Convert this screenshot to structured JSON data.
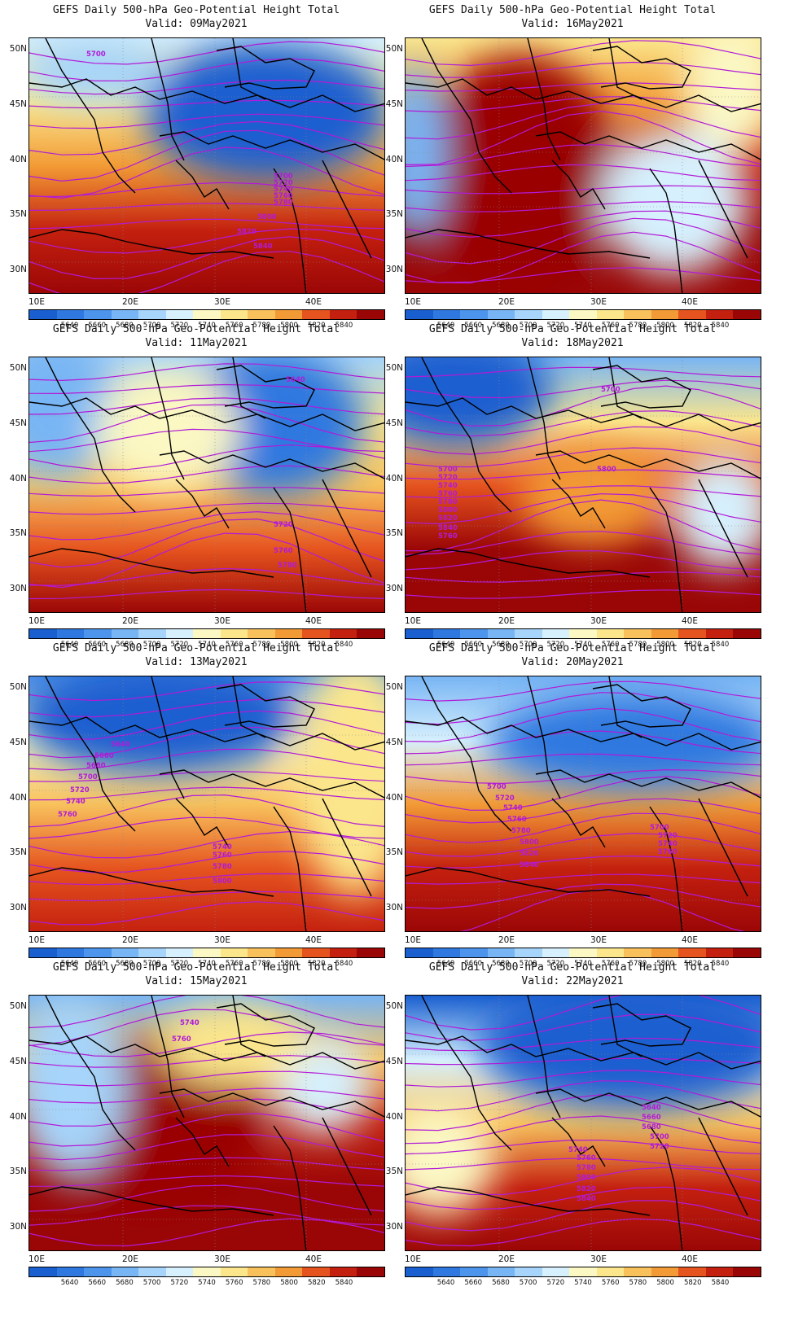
{
  "legend": {
    "colors": [
      "#1a5fd0",
      "#2f78e0",
      "#4d94ec",
      "#78b5f4",
      "#a6d4fa",
      "#d6f0fd",
      "#fbf8c4",
      "#fbe68c",
      "#f8c15c",
      "#f29a35",
      "#e5531f",
      "#c4200f",
      "#9a0606"
    ],
    "labels": [
      "5640",
      "5660",
      "5680",
      "5700",
      "5720",
      "5740",
      "5760",
      "5780",
      "5800",
      "5820",
      "5840"
    ]
  },
  "axes": {
    "lon": [
      "10E",
      "20E",
      "30E",
      "40E"
    ],
    "lat": [
      "50N",
      "45N",
      "40N",
      "35N",
      "30N"
    ]
  },
  "panels": [
    {
      "title": "GEFS Daily 500-hPa Geo-Potential Height Total",
      "valid": "Valid: 09May2021",
      "contour_labels": [
        "5700",
        "5700",
        "5720",
        "5740",
        "5760",
        "5780",
        "5800",
        "5820",
        "5840"
      ]
    },
    {
      "title": "GEFS Daily 500-hPa Geo-Potential Height Total",
      "valid": "Valid: 16May2021",
      "contour_labels": []
    },
    {
      "title": "GEFS Daily 500-hPa Geo-Potential Height Total",
      "valid": "Valid: 11May2021",
      "contour_labels": [
        "5640",
        "5720",
        "5760",
        "5780"
      ]
    },
    {
      "title": "GEFS Daily 500-hPa Geo-Potential Height Total",
      "valid": "Valid: 18May2021",
      "contour_labels": [
        "5700",
        "5700",
        "5720",
        "5740",
        "5760",
        "5780",
        "5800",
        "5820",
        "5840",
        "5760",
        "5800"
      ]
    },
    {
      "title": "GEFS Daily 500-hPa Geo-Potential Height Total",
      "valid": "Valid: 13May2021",
      "contour_labels": [
        "5640",
        "5660",
        "5680",
        "5700",
        "5720",
        "5740",
        "5760",
        "5740",
        "5760",
        "5780",
        "5800"
      ]
    },
    {
      "title": "GEFS Daily 500-hPa Geo-Potential Height Total",
      "valid": "Valid: 20May2021",
      "contour_labels": [
        "5700",
        "5720",
        "5740",
        "5760",
        "5780",
        "5800",
        "5820",
        "5840",
        "5700",
        "5720",
        "5740",
        "5760"
      ]
    },
    {
      "title": "GEFS Daily 500-hPa Geo-Potential Height Total",
      "valid": "Valid: 15May2021",
      "contour_labels": [
        "5740",
        "5760"
      ]
    },
    {
      "title": "GEFS Daily 500-hPa Geo-Potential Height Total",
      "valid": "Valid: 22May2021",
      "contour_labels": [
        "5640",
        "5660",
        "5680",
        "5700",
        "5720",
        "5740",
        "5760",
        "5780",
        "5800",
        "5820",
        "5840"
      ]
    }
  ]
}
